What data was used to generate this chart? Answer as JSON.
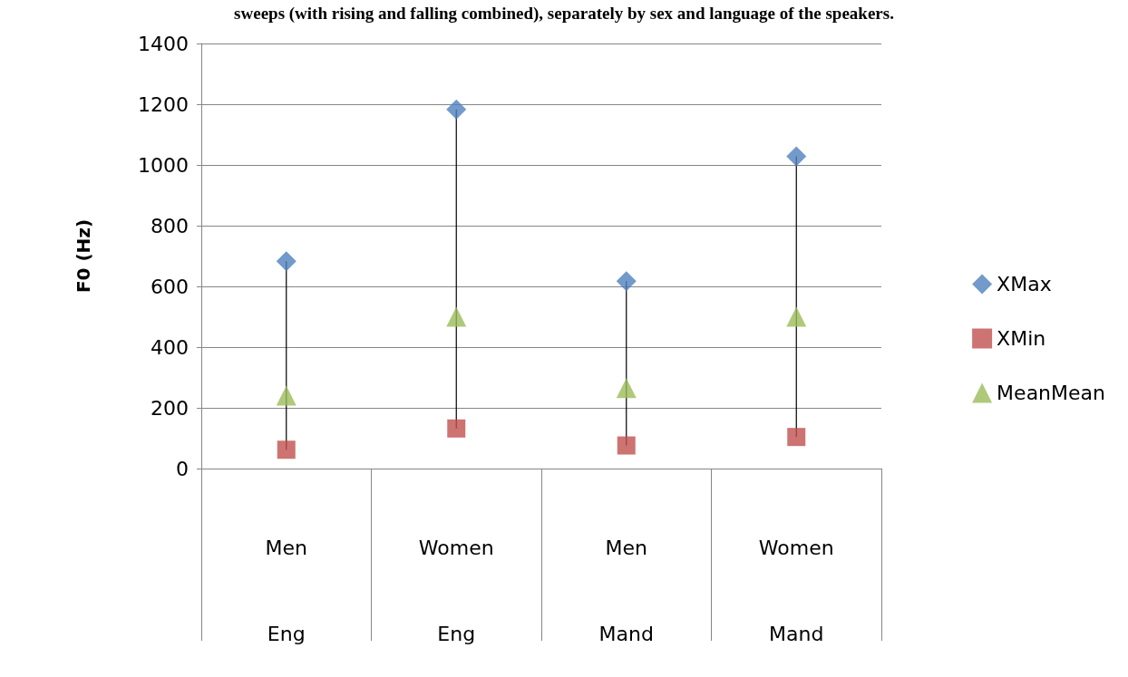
{
  "chart_data": {
    "type": "scatter",
    "title": "sweeps (with rising and falling combined), separately by sex and language of the speakers.",
    "ylabel": "F0 (Hz)",
    "categories": [
      "Men\nEng",
      "Women\nEng",
      "Men\nMand",
      "Women\nMand"
    ],
    "series": [
      {
        "name": "XMax",
        "color": "#4f81bd",
        "marker": "diamond",
        "values": [
          683,
          1183,
          617,
          1028
        ]
      },
      {
        "name": "XMin",
        "color": "#c0504d",
        "marker": "square",
        "values": [
          62,
          132,
          76,
          104
        ]
      },
      {
        "name": "MeanMean",
        "color": "#9bbb59",
        "marker": "triangle",
        "values": [
          240,
          500,
          265,
          500
        ]
      }
    ],
    "ylim": [
      0,
      1400
    ],
    "yticks": [
      0,
      200,
      400,
      600,
      800,
      1000,
      1200,
      1400
    ],
    "grid": "y",
    "legend": "right"
  }
}
